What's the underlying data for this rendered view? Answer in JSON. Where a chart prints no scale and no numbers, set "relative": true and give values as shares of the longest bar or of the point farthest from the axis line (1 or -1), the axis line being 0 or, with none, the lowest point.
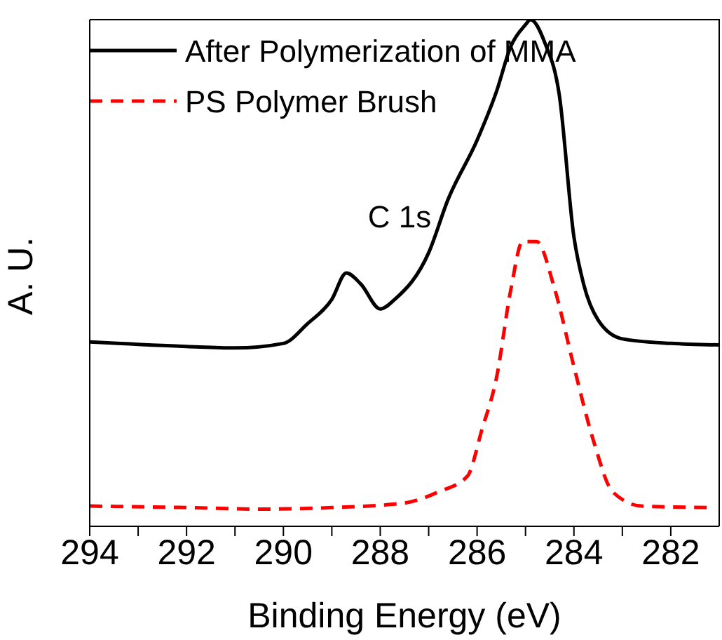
{
  "chart_data": {
    "type": "line",
    "relative": true,
    "xlabel": "Binding Energy (eV)",
    "ylabel": "A. U.",
    "annotations": [
      "C 1s"
    ],
    "xlim": [
      294,
      281
    ],
    "xticks": [
      294,
      {
        "value": 293,
        "label": null
      },
      292,
      {
        "value": 291,
        "label": null
      },
      290,
      {
        "value": 289,
        "label": null
      },
      288,
      {
        "value": 287,
        "label": null
      },
      286,
      {
        "value": 285,
        "label": null
      },
      284,
      {
        "value": 283,
        "label": null
      },
      282
    ],
    "legend": "top left",
    "line_style": "solid",
    "marker": "none",
    "series": [
      {
        "name": "After Polymerization of MMA",
        "color": "#000000",
        "x": [
          294,
          292,
          291,
          290,
          289.5,
          289,
          288.7,
          288.4,
          288,
          287.7,
          287,
          286.6,
          286,
          285.6,
          285.3,
          285,
          284.9,
          284.6,
          284.3,
          284,
          283.8,
          283.5,
          283,
          282,
          281
        ],
        "values": [
          0.364,
          0.355,
          0.352,
          0.361,
          0.4,
          0.448,
          0.5,
          0.478,
          0.429,
          0.448,
          0.54,
          0.645,
          0.762,
          0.858,
          0.948,
          0.99,
          1,
          0.954,
          0.85,
          0.571,
          0.478,
          0.407,
          0.37,
          0.361,
          0.358
        ]
      },
      {
        "name": "PS Polymer Brush",
        "color": "#ff0000",
        "line_style": "dashed",
        "x": [
          294,
          292,
          290.5,
          289,
          287.5,
          286.8,
          286.2,
          285.9,
          285.6,
          285.3,
          285.06,
          284.77,
          284.4,
          284,
          283.6,
          283.2,
          282.6,
          281.2
        ],
        "values": [
          0.04,
          0.037,
          0.034,
          0.037,
          0.046,
          0.068,
          0.099,
          0.191,
          0.293,
          0.469,
          0.562,
          0.562,
          0.469,
          0.315,
          0.17,
          0.068,
          0.04,
          0.037
        ]
      }
    ]
  }
}
